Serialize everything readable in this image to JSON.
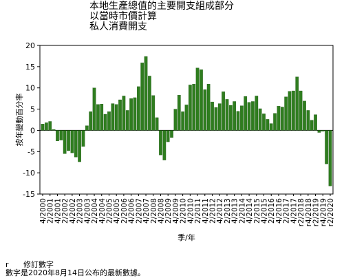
{
  "chart_data": {
    "type": "bar",
    "title_lines": [
      "本地生產總值的主要開支組成部分",
      "以當時市價計算",
      "私人消費開支"
    ],
    "ylabel": "按年變動百分率",
    "xlabel": "季/年",
    "ylim": [
      -15,
      20
    ],
    "yticks": [
      20,
      15,
      10,
      5,
      0,
      -5,
      -10,
      -15
    ],
    "bar_color": "#2f7d1f",
    "x_tick_labels": [
      {
        "label": "4/2000",
        "index": 0
      },
      {
        "label": "2/2001",
        "index": 2
      },
      {
        "label": "4/2001",
        "index": 4
      },
      {
        "label": "2/2002",
        "index": 6
      },
      {
        "label": "4/2002",
        "index": 8
      },
      {
        "label": "2/2003",
        "index": 10
      },
      {
        "label": "4/2003",
        "index": 12
      },
      {
        "label": "2/2004",
        "index": 14
      },
      {
        "label": "4/2004",
        "index": 16
      },
      {
        "label": "2/2005",
        "index": 18
      },
      {
        "label": "4/2005",
        "index": 20
      },
      {
        "label": "2/2006",
        "index": 22
      },
      {
        "label": "4/2006",
        "index": 24
      },
      {
        "label": "2/2007",
        "index": 26
      },
      {
        "label": "4/2007",
        "index": 28
      },
      {
        "label": "2/2008",
        "index": 30
      },
      {
        "label": "4/2008",
        "index": 32
      },
      {
        "label": "2/2009",
        "index": 34
      },
      {
        "label": "4/2009",
        "index": 36
      },
      {
        "label": "2/2010",
        "index": 38
      },
      {
        "label": "4/2010",
        "index": 40
      },
      {
        "label": "2/2011",
        "index": 42
      },
      {
        "label": "4/2011",
        "index": 44
      },
      {
        "label": "2/2012",
        "index": 46
      },
      {
        "label": "4/2012",
        "index": 48
      },
      {
        "label": "2/2013",
        "index": 50
      },
      {
        "label": "4/2013",
        "index": 52
      },
      {
        "label": "2/2014",
        "index": 54
      },
      {
        "label": "4/2014",
        "index": 56
      },
      {
        "label": "2/2015",
        "index": 58
      },
      {
        "label": "4/2015",
        "index": 60
      },
      {
        "label": "2/2016",
        "index": 62
      },
      {
        "label": "4/2016",
        "index": 64
      },
      {
        "label": "2/2017",
        "index": 66
      },
      {
        "label": "4/2017",
        "index": 68
      },
      {
        "label": "r2/2018",
        "index": 70
      },
      {
        "label": "r4/2018",
        "index": 72
      },
      {
        "label": "r2/2019",
        "index": 74
      },
      {
        "label": "r4/2019",
        "index": 76
      },
      {
        "label": "r2/2020",
        "index": 78
      }
    ],
    "values": [
      1.5,
      1.8,
      2.1,
      0.2,
      -2.5,
      -2.3,
      -5.5,
      -4.8,
      -5.3,
      -6.3,
      -7.4,
      -3.8,
      1.1,
      4.4,
      10.0,
      6.1,
      6.2,
      3.8,
      4.4,
      6.3,
      6.1,
      7.2,
      8.1,
      4.7,
      7.5,
      7.7,
      10.3,
      15.9,
      17.4,
      12.8,
      8.2,
      3.0,
      -5.8,
      -7.0,
      -2.7,
      -1.7,
      5.0,
      8.3,
      4.4,
      6.0,
      10.7,
      10.9,
      14.7,
      14.3,
      9.6,
      10.9,
      6.7,
      5.4,
      6.3,
      9.1,
      7.3,
      5.9,
      6.8,
      4.5,
      5.8,
      8.0,
      6.6,
      6.8,
      8.1,
      5.1,
      3.9,
      2.6,
      1.6,
      4.0,
      5.7,
      5.5,
      7.9,
      9.2,
      9.3,
      12.6,
      9.3,
      6.9,
      4.7,
      2.4,
      3.7,
      -0.5,
      -0.2,
      -7.9,
      -13.1
    ]
  },
  "footnotes": {
    "revised_symbol": "r",
    "revised_text": "修訂數字",
    "release_note": "數字是2020年8月14日公布的最新數據。"
  }
}
